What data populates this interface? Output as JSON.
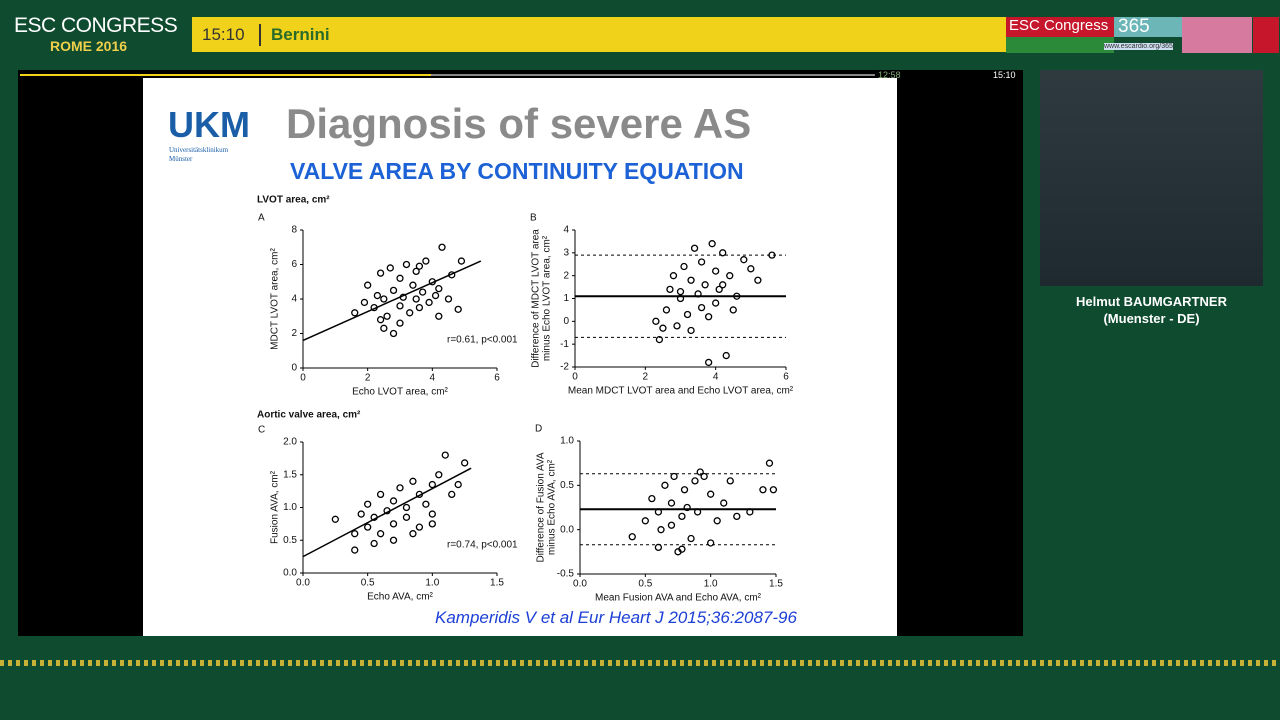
{
  "header": {
    "logo_line1": "ESC CONGRESS",
    "logo_line2": "ROME 2016",
    "time": "15:10",
    "room": "Bernini",
    "brand": "ESC Congress",
    "brand_num": "365",
    "url": "www.escardio.org/365"
  },
  "player": {
    "elapsed": "12:58",
    "duration": "15:10"
  },
  "speaker": {
    "name": "Helmut BAUMGARTNER",
    "affiliation": "(Muenster - DE)"
  },
  "slide": {
    "logo": "UKM",
    "logo_sub1": "Universitätsklinikum",
    "logo_sub2": "Münster",
    "title": "Diagnosis of severe AS",
    "subtitle": "VALVE AREA BY CONTINUITY EQUATION",
    "section1": "LVOT area, cm²",
    "section2": "Aortic valve area, cm²",
    "citation": "Kamperidis V et al  Eur Heart J 2015;36:2087-96",
    "panels": [
      {
        "letter": "A",
        "xlabel": "Echo LVOT area, cm²",
        "ylabel": [
          "MDCT LVOT area, cm²"
        ],
        "annotation": "r=0.61, p<0.001",
        "xlim": [
          0,
          6
        ],
        "ylim": [
          0,
          8
        ],
        "xticks": [
          0,
          2,
          4,
          6
        ],
        "yticks": [
          0,
          2,
          4,
          6,
          8
        ],
        "line_x": [
          0,
          5.5
        ],
        "line_y": [
          1.6,
          6.2
        ],
        "x": [
          1.6,
          1.9,
          2.0,
          2.2,
          2.3,
          2.4,
          2.5,
          2.5,
          2.6,
          2.7,
          2.8,
          2.8,
          3.0,
          3.0,
          3.1,
          3.2,
          3.3,
          3.4,
          3.5,
          3.5,
          3.6,
          3.7,
          3.8,
          3.9,
          4.0,
          4.1,
          4.2,
          4.3,
          4.5,
          4.6,
          4.8,
          4.9,
          2.4,
          3.0,
          3.6,
          4.2
        ],
        "y": [
          3.2,
          3.8,
          4.8,
          3.5,
          4.2,
          5.5,
          2.3,
          4.0,
          3.0,
          5.8,
          4.5,
          2.0,
          3.6,
          5.2,
          4.1,
          6.0,
          3.2,
          4.8,
          4.0,
          5.6,
          3.5,
          4.4,
          6.2,
          3.8,
          5.0,
          4.2,
          4.6,
          7.0,
          4.0,
          5.4,
          3.4,
          6.2,
          2.8,
          2.6,
          5.9,
          3.0
        ]
      },
      {
        "letter": "B",
        "xlabel": "Mean MDCT LVOT area and Echo LVOT area, cm²",
        "ylabel": [
          "Difference of MDCT LVOT area",
          "minus Echo LVOT area, cm²"
        ],
        "xlim": [
          0,
          6
        ],
        "ylim": [
          -2,
          4
        ],
        "xticks": [
          0,
          2,
          4,
          6
        ],
        "yticks": [
          -2,
          -1,
          0,
          1,
          2,
          3,
          4
        ],
        "mean": 1.1,
        "limits": [
          2.9,
          -0.7
        ],
        "x": [
          2.3,
          2.4,
          2.6,
          2.7,
          2.8,
          2.9,
          3.0,
          3.1,
          3.2,
          3.3,
          3.3,
          3.4,
          3.5,
          3.6,
          3.6,
          3.7,
          3.8,
          3.9,
          4.0,
          4.0,
          4.1,
          4.2,
          4.3,
          4.4,
          4.5,
          4.6,
          4.8,
          5.0,
          5.2,
          5.6,
          3.8,
          4.2,
          3.0,
          2.5
        ],
        "y": [
          0,
          -0.8,
          0.5,
          1.4,
          2.0,
          -0.2,
          1.0,
          2.4,
          0.3,
          1.8,
          -0.4,
          3.2,
          1.2,
          0.6,
          2.6,
          1.6,
          -1.8,
          3.4,
          2.2,
          0.8,
          1.4,
          3.0,
          -1.5,
          2.0,
          0.5,
          1.1,
          2.7,
          2.3,
          1.8,
          2.9,
          0.2,
          1.6,
          1.3,
          -0.3
        ]
      },
      {
        "letter": "C",
        "xlabel": "Echo AVA, cm²",
        "ylabel": [
          "Fusion AVA, cm²"
        ],
        "annotation": "r=0.74, p<0.001",
        "xlim": [
          0,
          1.5
        ],
        "ylim": [
          0,
          2
        ],
        "xticks": [
          {
            "value": 0,
            "label": "0.0"
          },
          0.5,
          {
            "value": 1,
            "label": "1.0"
          },
          1.5
        ],
        "yticks": [
          {
            "value": 0,
            "label": "0.0"
          },
          0.5,
          {
            "value": 1,
            "label": "1.0"
          },
          1.5,
          {
            "value": 2,
            "label": "2.0"
          }
        ],
        "line_x": [
          0,
          1.3
        ],
        "line_y": [
          0.25,
          1.6
        ],
        "x": [
          0.25,
          0.4,
          0.4,
          0.45,
          0.5,
          0.5,
          0.55,
          0.6,
          0.6,
          0.65,
          0.7,
          0.7,
          0.75,
          0.8,
          0.8,
          0.85,
          0.9,
          0.9,
          0.95,
          1.0,
          1.0,
          1.05,
          1.1,
          1.15,
          1.2,
          1.25,
          0.55,
          0.7,
          0.85,
          1.0
        ],
        "y": [
          0.82,
          0.6,
          0.35,
          0.9,
          0.7,
          1.05,
          0.85,
          0.6,
          1.2,
          0.95,
          0.75,
          1.1,
          1.3,
          0.85,
          1.0,
          1.4,
          0.7,
          1.2,
          1.05,
          1.35,
          0.9,
          1.5,
          1.8,
          1.2,
          1.35,
          1.68,
          0.45,
          0.5,
          0.6,
          0.75
        ]
      },
      {
        "letter": "D",
        "xlabel": "Mean Fusion AVA and Echo AVA, cm²",
        "ylabel": [
          "Difference of Fusion AVA",
          "minus Echo AVA, cm²"
        ],
        "xlim": [
          0,
          1.5
        ],
        "ylim": [
          -0.5,
          1
        ],
        "xticks": [
          {
            "value": 0,
            "label": "0.0"
          },
          0.5,
          {
            "value": 1,
            "label": "1.0"
          },
          1.5
        ],
        "yticks": [
          -0.5,
          {
            "value": 0,
            "label": "0.0"
          },
          0.5,
          {
            "value": 1,
            "label": "1.0"
          }
        ],
        "mean": 0.23,
        "limits": [
          0.63,
          -0.17
        ],
        "x": [
          0.4,
          0.5,
          0.55,
          0.6,
          0.6,
          0.65,
          0.7,
          0.7,
          0.72,
          0.75,
          0.78,
          0.8,
          0.82,
          0.85,
          0.88,
          0.9,
          0.95,
          1.0,
          1.0,
          1.05,
          1.1,
          1.15,
          1.2,
          1.3,
          1.4,
          1.45,
          1.48,
          0.62,
          0.78,
          0.92
        ],
        "y": [
          -0.08,
          0.1,
          0.35,
          -0.2,
          0.2,
          0.5,
          0.05,
          0.3,
          0.6,
          -0.25,
          0.15,
          0.45,
          0.25,
          -0.1,
          0.55,
          0.2,
          0.6,
          -0.15,
          0.4,
          0.1,
          0.3,
          0.55,
          0.15,
          0.2,
          0.45,
          0.75,
          0.45,
          0.0,
          -0.22,
          0.65
        ]
      }
    ]
  }
}
